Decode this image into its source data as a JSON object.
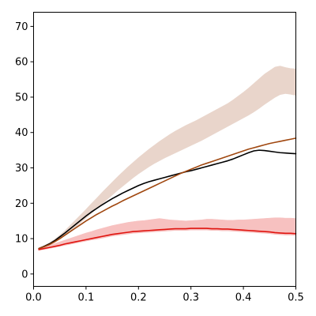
{
  "chart_data": {
    "type": "line",
    "title": "",
    "xlabel": "",
    "ylabel": "",
    "xlim": [
      0.0,
      0.5
    ],
    "ylim": [
      -3.5,
      74
    ],
    "x_ticks": [
      "0.0",
      "0.1",
      "0.2",
      "0.3",
      "0.4",
      "0.5"
    ],
    "y_ticks": [
      "0",
      "10",
      "20",
      "30",
      "40",
      "50",
      "60",
      "70"
    ],
    "grid": false,
    "legend": "none",
    "x": [
      0.01,
      0.02,
      0.03,
      0.04,
      0.05,
      0.06,
      0.07,
      0.08,
      0.09,
      0.1,
      0.11,
      0.12,
      0.13,
      0.14,
      0.15,
      0.16,
      0.17,
      0.18,
      0.19,
      0.2,
      0.21,
      0.22,
      0.23,
      0.24,
      0.25,
      0.26,
      0.27,
      0.28,
      0.29,
      0.3,
      0.31,
      0.32,
      0.33,
      0.34,
      0.35,
      0.36,
      0.37,
      0.38,
      0.39,
      0.4,
      0.41,
      0.42,
      0.43,
      0.44,
      0.45,
      0.46,
      0.47,
      0.48,
      0.49,
      0.5
    ],
    "series": [
      {
        "color": "#000000",
        "band": null,
        "values": [
          7.2,
          7.8,
          8.5,
          9.4,
          10.5,
          11.6,
          12.8,
          14.0,
          15.2,
          16.4,
          17.5,
          18.5,
          19.5,
          20.4,
          21.3,
          22.1,
          22.9,
          23.6,
          24.3,
          25.0,
          25.6,
          26.1,
          26.5,
          26.9,
          27.3,
          27.7,
          28.1,
          28.5,
          28.9,
          29.2,
          29.6,
          30.0,
          30.4,
          30.8,
          31.2,
          31.6,
          32.0,
          32.5,
          33.1,
          33.7,
          34.3,
          34.8,
          35.0,
          34.9,
          34.7,
          34.5,
          34.3,
          34.2,
          34.1,
          34.0
        ]
      },
      {
        "color": "#a0470f",
        "band_color": "#e9d5cb",
        "values": [
          7.2,
          7.7,
          8.3,
          9.1,
          10.0,
          11.0,
          12.0,
          13.0,
          14.0,
          15.0,
          15.9,
          16.8,
          17.6,
          18.4,
          19.2,
          19.9,
          20.7,
          21.4,
          22.1,
          22.8,
          23.5,
          24.2,
          24.9,
          25.6,
          26.3,
          27.0,
          27.7,
          28.4,
          29.0,
          29.6,
          30.2,
          30.8,
          31.3,
          31.8,
          32.3,
          32.8,
          33.3,
          33.8,
          34.3,
          34.8,
          35.3,
          35.7,
          36.1,
          36.5,
          36.9,
          37.2,
          37.5,
          37.8,
          38.1,
          38.4
        ],
        "band_low": [
          7.0,
          7.5,
          8.1,
          8.9,
          9.8,
          10.9,
          12.0,
          13.2,
          14.5,
          15.8,
          17.1,
          18.4,
          19.7,
          21.0,
          22.3,
          23.6,
          24.8,
          26.0,
          27.2,
          28.3,
          29.3,
          30.3,
          31.2,
          32.0,
          32.8,
          33.5,
          34.2,
          34.9,
          35.6,
          36.3,
          37.0,
          37.7,
          38.5,
          39.3,
          40.1,
          40.9,
          41.7,
          42.5,
          43.3,
          44.1,
          44.9,
          45.8,
          46.8,
          47.9,
          48.9,
          49.9,
          50.7,
          51.0,
          50.8,
          50.5
        ],
        "band_high": [
          7.4,
          8.0,
          8.8,
          9.8,
          11.0,
          12.3,
          13.8,
          15.3,
          16.8,
          18.3,
          19.9,
          21.4,
          23.0,
          24.5,
          26.0,
          27.5,
          28.9,
          30.3,
          31.6,
          32.9,
          34.1,
          35.3,
          36.4,
          37.5,
          38.5,
          39.5,
          40.4,
          41.2,
          42.0,
          42.7,
          43.4,
          44.2,
          45.0,
          45.8,
          46.6,
          47.4,
          48.2,
          49.2,
          50.3,
          51.4,
          52.6,
          53.9,
          55.2,
          56.5,
          57.5,
          58.5,
          58.8,
          58.4,
          58.1,
          58.0
        ]
      },
      {
        "color": "#e0140f",
        "band_color": "#f7c1c0",
        "values": [
          6.9,
          7.2,
          7.5,
          7.8,
          8.1,
          8.5,
          8.8,
          9.1,
          9.4,
          9.7,
          10.0,
          10.3,
          10.6,
          10.9,
          11.2,
          11.4,
          11.6,
          11.8,
          12.0,
          12.1,
          12.2,
          12.3,
          12.4,
          12.5,
          12.6,
          12.7,
          12.8,
          12.8,
          12.8,
          12.9,
          12.9,
          12.9,
          12.9,
          12.8,
          12.8,
          12.7,
          12.7,
          12.6,
          12.5,
          12.4,
          12.3,
          12.2,
          12.1,
          12.0,
          11.9,
          11.7,
          11.6,
          11.5,
          11.5,
          11.4
        ],
        "band_low": [
          6.7,
          6.9,
          7.2,
          7.5,
          7.8,
          8.1,
          8.4,
          8.7,
          9.0,
          9.3,
          9.6,
          9.8,
          10.1,
          10.4,
          10.7,
          10.9,
          11.1,
          11.3,
          11.5,
          11.6,
          11.7,
          11.8,
          11.9,
          12.0,
          12.1,
          12.2,
          12.3,
          12.3,
          12.3,
          12.4,
          12.4,
          12.4,
          12.4,
          12.3,
          12.3,
          12.2,
          12.2,
          12.1,
          12.0,
          11.9,
          11.8,
          11.7,
          11.6,
          11.5,
          11.4,
          11.2,
          11.1,
          11.0,
          11.0,
          10.9
        ],
        "band_high": [
          7.1,
          7.6,
          8.1,
          8.6,
          9.1,
          9.6,
          10.1,
          10.6,
          11.1,
          11.6,
          12.0,
          12.5,
          12.9,
          13.3,
          13.7,
          14.0,
          14.3,
          14.6,
          14.8,
          15.0,
          15.1,
          15.3,
          15.5,
          15.7,
          15.5,
          15.3,
          15.2,
          15.1,
          15.0,
          15.1,
          15.2,
          15.3,
          15.5,
          15.5,
          15.4,
          15.3,
          15.2,
          15.2,
          15.3,
          15.3,
          15.4,
          15.5,
          15.6,
          15.7,
          15.8,
          15.9,
          15.9,
          15.8,
          15.8,
          15.7
        ]
      }
    ]
  }
}
